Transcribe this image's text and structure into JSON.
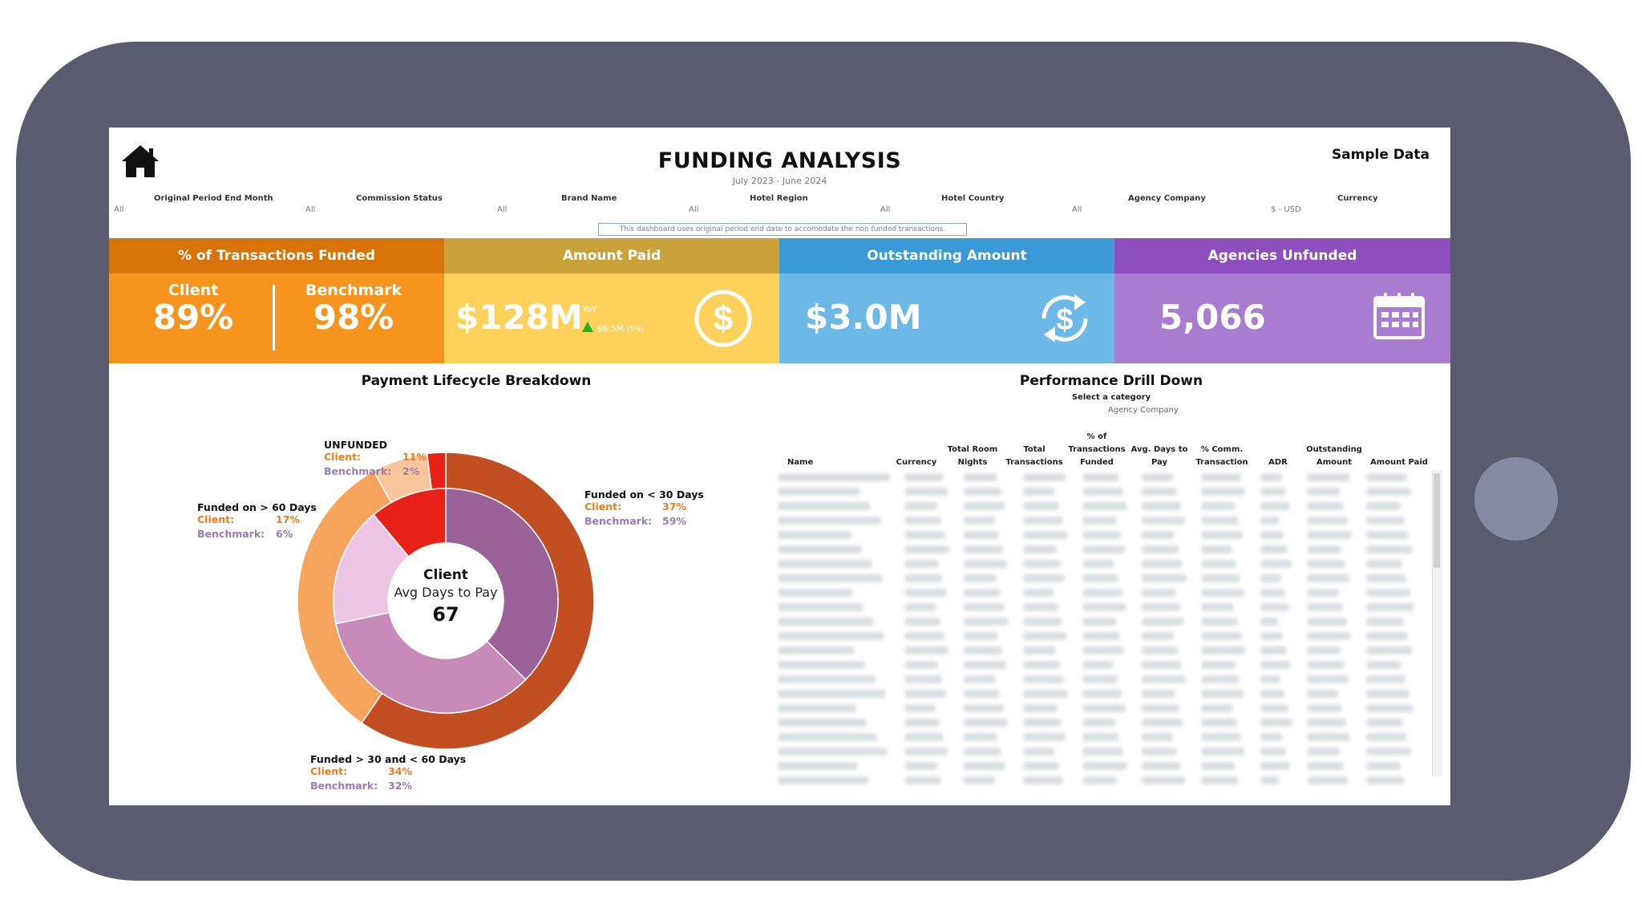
{
  "header": {
    "title": "FUNDING ANALYSIS",
    "subtitle": "July 2023 - June 2024",
    "sample_label": "Sample Data",
    "notice": "This dashboard uses  original period end date to accomodate the non funded transactions."
  },
  "filters": [
    {
      "label": "Original Period End Month",
      "value": "All"
    },
    {
      "label": "Commission Status",
      "value": "All"
    },
    {
      "label": "Brand Name",
      "value": "All"
    },
    {
      "label": "Hotel Region",
      "value": "All"
    },
    {
      "label": "Hotel Country",
      "value": "All"
    },
    {
      "label": "Agency Company",
      "value": "All"
    },
    {
      "label": "Currency",
      "value": "$ - USD"
    }
  ],
  "kpis": {
    "funded": {
      "header": "% of Transactions Funded",
      "client_label": "Client",
      "client_value": "89%",
      "bench_label": "Benchmark",
      "bench_value": "98%"
    },
    "paid": {
      "header": "Amount Paid",
      "value": "$128M",
      "yoy_label": "YoY",
      "yoy_value": "$6.5M",
      "yoy_pct": "(5%)"
    },
    "outstanding": {
      "header": "Outstanding Amount",
      "value": "$3.0M"
    },
    "agencies": {
      "header": "Agencies Unfunded",
      "value": "5,066"
    }
  },
  "lifecycle": {
    "title": "Payment Lifecycle Breakdown",
    "center_title": "Client",
    "center_subtitle": "Avg Days to Pay",
    "center_value": "67",
    "client_label": "Client:",
    "bench_label": "Benchmark:",
    "segments": [
      {
        "name": "Funded on < 30 Days",
        "client": "37%",
        "benchmark": "59%",
        "client_pct": 37,
        "bench_pct": 59
      },
      {
        "name": "Funded > 30 and < 60 Days",
        "client": "34%",
        "benchmark": "32%",
        "client_pct": 34,
        "bench_pct": 32
      },
      {
        "name": "Funded on > 60 Days",
        "client": "17%",
        "benchmark": "6%",
        "client_pct": 17,
        "bench_pct": 6
      },
      {
        "name": "UNFUNDED",
        "client": "11%",
        "benchmark": "2%",
        "client_pct": 11,
        "bench_pct": 2
      }
    ],
    "colors": {
      "outer": [
        "#c24f22",
        "#f7a55c",
        "#f9c59a",
        "#e82118"
      ],
      "inner": [
        "#9a6299",
        "#c78ab9",
        "#ecc4e4",
        "#e82118"
      ]
    }
  },
  "drilldown": {
    "title": "Performance Drill Down",
    "subtitle": "Select a category",
    "category": "Agency Company",
    "columns": [
      "Name",
      "Currency",
      "Total Room Nights",
      "Total Transactions",
      "% of Transactions Funded",
      "Avg. Days to Pay",
      "% Comm. Transaction",
      "ADR",
      "Outstanding Amount",
      "Amount Paid"
    ]
  },
  "colors": {
    "funded_header": "#d8730a",
    "funded_body": "#f7941d",
    "paid_header": "#c9a33a",
    "paid_body": "#fdd15a",
    "outstanding_header": "#3a9ad8",
    "outstanding_body": "#6cb8e6",
    "agencies_header": "#8c4fbd",
    "agencies_body": "#a87ccf",
    "device": "#595c6e"
  },
  "icons": {
    "home": "home-icon",
    "dollar": "dollar-circle-icon",
    "refresh": "refresh-dollar-icon",
    "calendar": "calendar-icon"
  }
}
